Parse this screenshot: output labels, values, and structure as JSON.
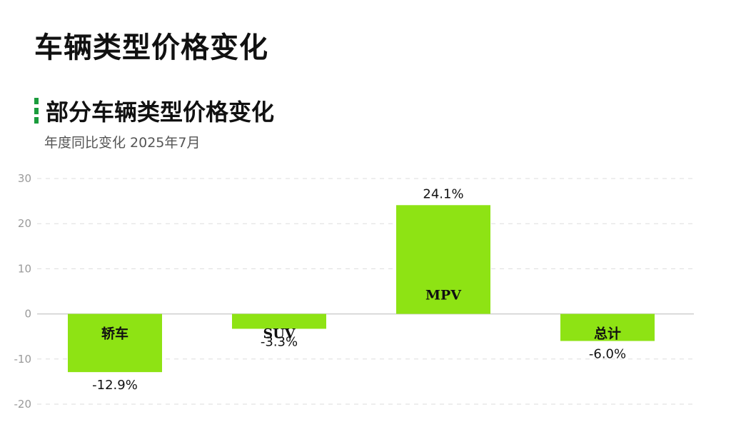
{
  "page": {
    "title": "车辆类型价格变化"
  },
  "colors": {
    "bar": "#8ee314",
    "accent": "#1a9c3c",
    "grid": "#dddddd",
    "zero_line": "#cfcfcf",
    "tick_text": "#9a9a9a"
  },
  "chart_data": {
    "type": "bar",
    "title": "部分车辆类型价格变化",
    "subtitle": "年度同比变化 2025年7月",
    "xlabel": "",
    "ylabel": "",
    "categories": [
      "轿车",
      "SUV",
      "MPV",
      "总计"
    ],
    "values": [
      -12.9,
      -3.3,
      24.1,
      -6.0
    ],
    "data_labels": [
      "-12.9%",
      "-3.3%",
      "24.1%",
      "-6.0%"
    ],
    "y_ticks": [
      30,
      20,
      10,
      0,
      -10,
      -20
    ],
    "ylim": [
      -20,
      30
    ],
    "grid": true,
    "legend": "none"
  }
}
